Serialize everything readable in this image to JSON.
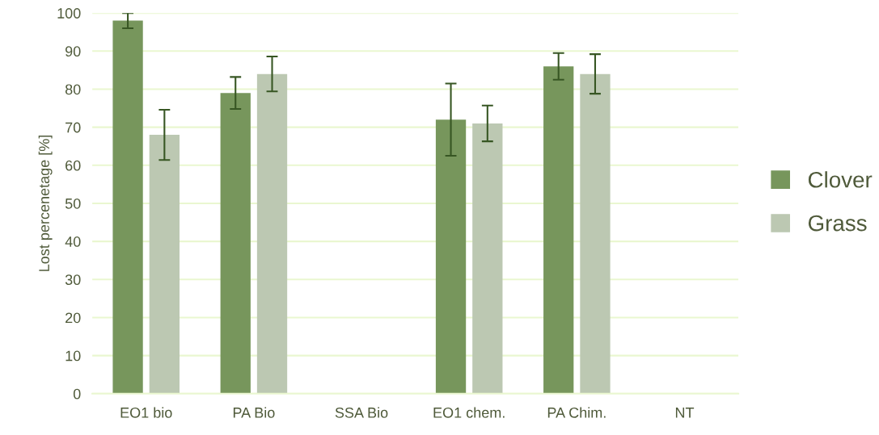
{
  "chart_data": {
    "type": "bar",
    "ylabel": "Lost percenetage [%]",
    "categories": [
      "EO1 bio",
      "PA Bio",
      "SSA Bio",
      "EO1 chem.",
      "PA Chim.",
      "NT"
    ],
    "series": [
      {
        "name": "Clover",
        "color": "#77965c",
        "values": [
          98,
          79,
          0,
          72,
          86,
          0
        ],
        "errors": [
          2,
          4.2,
          null,
          9.5,
          3.5,
          null
        ]
      },
      {
        "name": "Grass",
        "color": "#bcc8b2",
        "values": [
          68,
          84,
          0,
          71,
          84,
          0
        ],
        "errors": [
          6.6,
          4.6,
          null,
          4.7,
          5.2,
          null
        ]
      }
    ],
    "ylim": [
      0,
      100
    ],
    "yticks": [
      0,
      10,
      20,
      30,
      40,
      50,
      60,
      70,
      80,
      90,
      100
    ],
    "grid": "y",
    "legend": "right"
  }
}
